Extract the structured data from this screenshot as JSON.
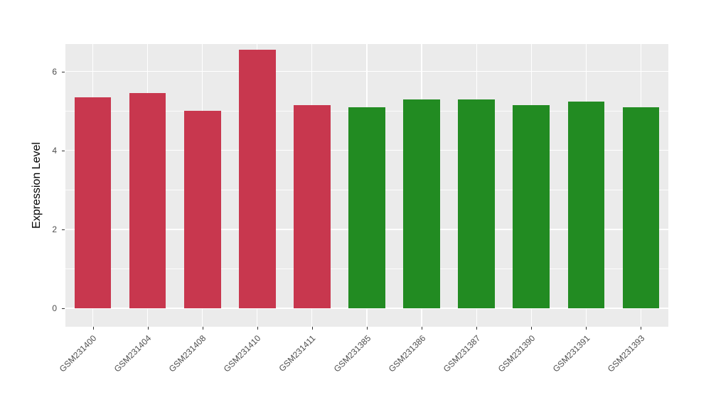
{
  "chart_data": {
    "type": "bar",
    "title": "",
    "xlabel": "",
    "ylabel": "Expression Level",
    "categories": [
      "GSM231400",
      "GSM231404",
      "GSM231408",
      "GSM231410",
      "GSM231411",
      "GSM231385",
      "GSM231386",
      "GSM231387",
      "GSM231390",
      "GSM231391",
      "GSM231393"
    ],
    "values": [
      5.35,
      5.45,
      5.0,
      6.55,
      5.15,
      5.1,
      5.3,
      5.3,
      5.15,
      5.25,
      5.1
    ],
    "bar_colors": [
      "#C8374E",
      "#C8374E",
      "#C8374E",
      "#C8374E",
      "#C8374E",
      "#228B22",
      "#228B22",
      "#228B22",
      "#228B22",
      "#228B22",
      "#228B22"
    ],
    "yticks": [
      0,
      2,
      4,
      6
    ],
    "ylim": [
      0,
      6.7
    ],
    "grid": true,
    "legend_position": "none",
    "panel_bg": "#EBEBEB",
    "grid_color": "#FFFFFF",
    "tick_label_color": "#4D4D4D"
  }
}
